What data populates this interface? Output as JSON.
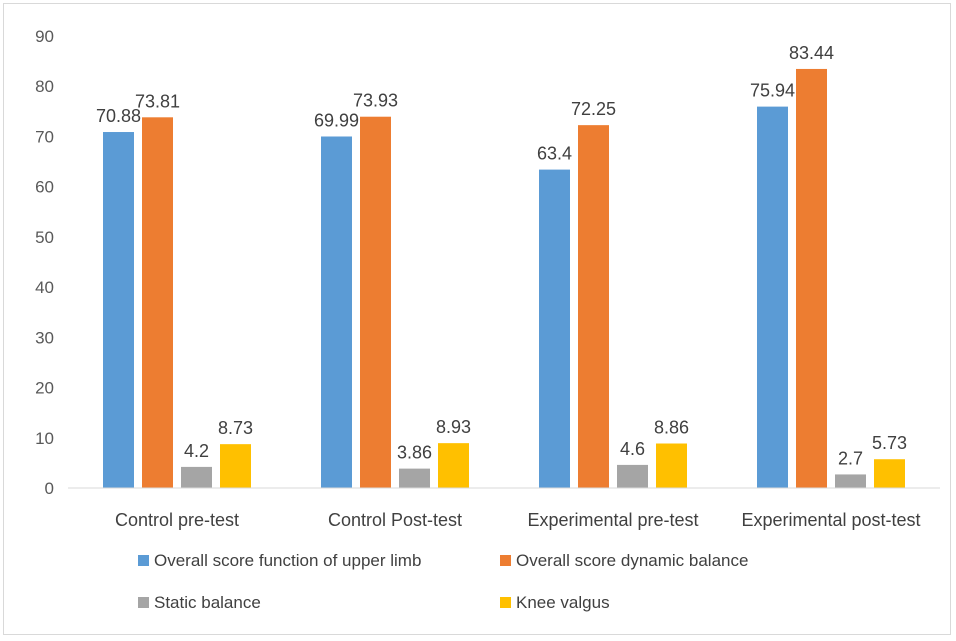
{
  "chart_data": {
    "type": "bar",
    "title": "",
    "xlabel": "",
    "ylabel": "",
    "ylim": [
      0,
      90
    ],
    "yticks": [
      0,
      10,
      20,
      30,
      40,
      50,
      60,
      70,
      80,
      90
    ],
    "grid": false,
    "legend_position": "bottom",
    "categories": [
      "Control pre-test",
      "Control Post-test",
      "Experimental pre-test",
      "Experimental post-test"
    ],
    "series": [
      {
        "name": "Overall score function of upper limb",
        "color": "#5b9bd5",
        "values": [
          70.88,
          69.99,
          63.4,
          75.94
        ],
        "labels": [
          "70.88",
          "69.99",
          "63.4",
          "75.94"
        ]
      },
      {
        "name": "Overall score dynamic balance",
        "color": "#ed7d31",
        "values": [
          73.81,
          73.93,
          72.25,
          83.44
        ],
        "labels": [
          "73.81",
          "73.93",
          "72.25",
          "83.44"
        ]
      },
      {
        "name": "Static balance",
        "color": "#a5a5a5",
        "values": [
          4.2,
          3.86,
          4.6,
          2.7
        ],
        "labels": [
          "4.2",
          "3.86",
          "4.6",
          "2.7"
        ]
      },
      {
        "name": "Knee valgus",
        "color": "#ffc000",
        "values": [
          8.73,
          8.93,
          8.86,
          5.73
        ],
        "labels": [
          "8.73",
          "8.93",
          "8.86",
          "5.73"
        ]
      }
    ]
  }
}
